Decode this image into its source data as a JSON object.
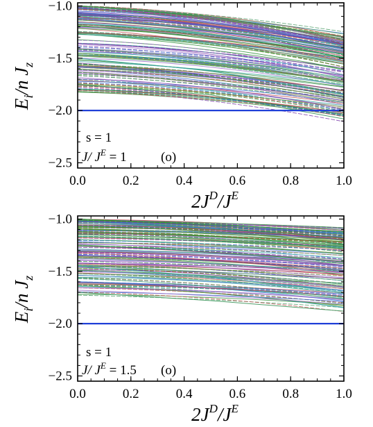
{
  "chart_data": [
    {
      "type": "line",
      "panel": "upper",
      "xlabel": "2J^D/J^E",
      "ylabel": "E_i/n J_z",
      "xlim": [
        0.0,
        1.0
      ],
      "ylim": [
        -2.55,
        -0.97
      ],
      "x_ticks": [
        "0.0",
        "0.2",
        "0.4",
        "0.6",
        "0.8",
        "1.0"
      ],
      "y_ticks": [
        "-1.0",
        "-1.5",
        "-2.0",
        "-2.5"
      ],
      "annotation_s": "s = 1",
      "annotation_ratio_value": "1",
      "annotation_tag": "(o)",
      "ground_level": {
        "x": [
          0.0,
          1.0
        ],
        "y": [
          -2.0,
          -2.0
        ],
        "color": "#1f3fd8"
      },
      "band": {
        "description_levels": "dense family of excited levels",
        "start_range": [
          -1.83,
          -1.0
        ],
        "end_range_at_x1": [
          -2.08,
          -1.3
        ],
        "sample_levels": [
          {
            "x": [
              0,
              0.5,
              1.0
            ],
            "y": [
              -1.0,
              -1.1,
              -1.3
            ]
          },
          {
            "x": [
              0,
              0.5,
              1.0
            ],
            "y": [
              -1.5,
              -1.62,
              -1.85
            ]
          },
          {
            "x": [
              0,
              0.5,
              1.0
            ],
            "y": [
              -1.75,
              -1.85,
              -2.08
            ]
          }
        ]
      }
    },
    {
      "type": "line",
      "panel": "lower",
      "xlabel": "2J^D/J^E",
      "ylabel": "E_i/n J_z",
      "xlim": [
        0.0,
        1.0
      ],
      "ylim": [
        -2.55,
        -0.97
      ],
      "x_ticks": [
        "0.0",
        "0.2",
        "0.4",
        "0.6",
        "0.8",
        "1.0"
      ],
      "y_ticks": [
        "-1.0",
        "-1.5",
        "-2.0",
        "-2.5"
      ],
      "annotation_s": "s = 1",
      "annotation_ratio_value": "1.5",
      "annotation_tag": "(o)",
      "ground_level": {
        "x": [
          0.0,
          1.0
        ],
        "y": [
          -2.0,
          -2.0
        ],
        "color": "#1f3fd8"
      },
      "band": {
        "description_levels": "dense family of excited levels",
        "start_range": [
          -1.73,
          -1.0
        ],
        "end_range_at_x1": [
          -1.88,
          -1.12
        ],
        "sample_levels": [
          {
            "x": [
              0,
              0.5,
              1.0
            ],
            "y": [
              -1.0,
              -1.05,
              -1.12
            ]
          },
          {
            "x": [
              0,
              0.5,
              1.0
            ],
            "y": [
              -1.45,
              -1.55,
              -1.7
            ]
          },
          {
            "x": [
              0,
              0.5,
              1.0
            ],
            "y": [
              -1.7,
              -1.78,
              -1.88
            ]
          }
        ]
      }
    }
  ],
  "labels": {
    "y_axis": {
      "e": "E",
      "i": "i",
      "mid": "/n J",
      "z": "z"
    },
    "x_axis": {
      "two_j": "2J",
      "d": "D",
      "slash_j": "/J",
      "e": "E"
    },
    "ratio_prefix": {
      "j": "J",
      "slash_j": "/ J",
      "e": "E",
      "eq": " = "
    }
  },
  "colors": {
    "ground": "#1f3fd8",
    "levels": [
      "#7a3aa8",
      "#2f8f3a",
      "#3a6fd0",
      "#c04f4f",
      "#3aa5a0",
      "#6a8f2f",
      "#9a6fc8",
      "#4f9f6a"
    ]
  }
}
